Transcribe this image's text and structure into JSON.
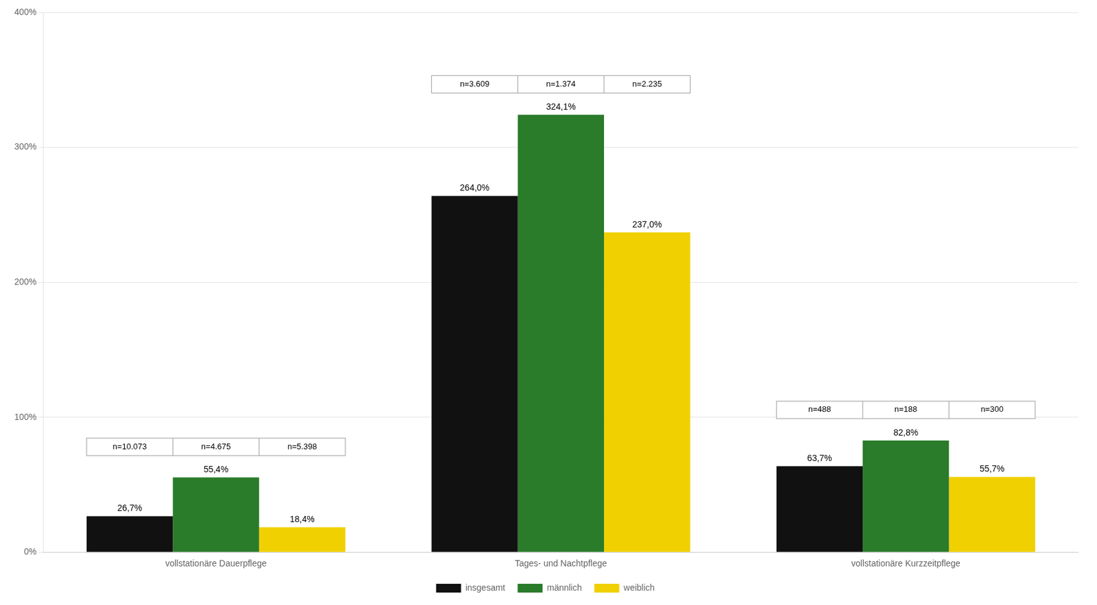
{
  "chart_data": {
    "type": "bar",
    "categories": [
      "vollstationäre Dauerpflege",
      "Tages- und Nachtpflege",
      "vollstationäre Kurzzeitpflege"
    ],
    "series": [
      {
        "name": "insgesamt",
        "color": "#111111",
        "values": [
          26.7,
          264.0,
          63.7
        ],
        "value_labels": [
          "26,7%",
          "264,0%",
          "63,7%"
        ]
      },
      {
        "name": "männlich",
        "color": "#2a7b2a",
        "values": [
          55.4,
          324.1,
          82.8
        ],
        "value_labels": [
          "55,4%",
          "324,1%",
          "82,8%"
        ]
      },
      {
        "name": "weiblich",
        "color": "#f0d000",
        "values": [
          18.4,
          237.0,
          55.7
        ],
        "value_labels": [
          "18,4%",
          "237,0%",
          "55,7%"
        ]
      }
    ],
    "annotations": [
      [
        "n=10.073",
        "n=4.675",
        "n=5.398"
      ],
      [
        "n=3.609",
        "n=1.374",
        "n=2.235"
      ],
      [
        "n=488",
        "n=188",
        "n=300"
      ]
    ],
    "ylim": [
      0,
      400
    ],
    "yticks": [
      {
        "value": 0,
        "label": "0%"
      },
      {
        "value": 100,
        "label": "100%"
      },
      {
        "value": 200,
        "label": "200%"
      },
      {
        "value": 300,
        "label": "300%"
      },
      {
        "value": 400,
        "label": "400%"
      }
    ],
    "grid": true,
    "legend": "bottom",
    "data_labels": true
  }
}
